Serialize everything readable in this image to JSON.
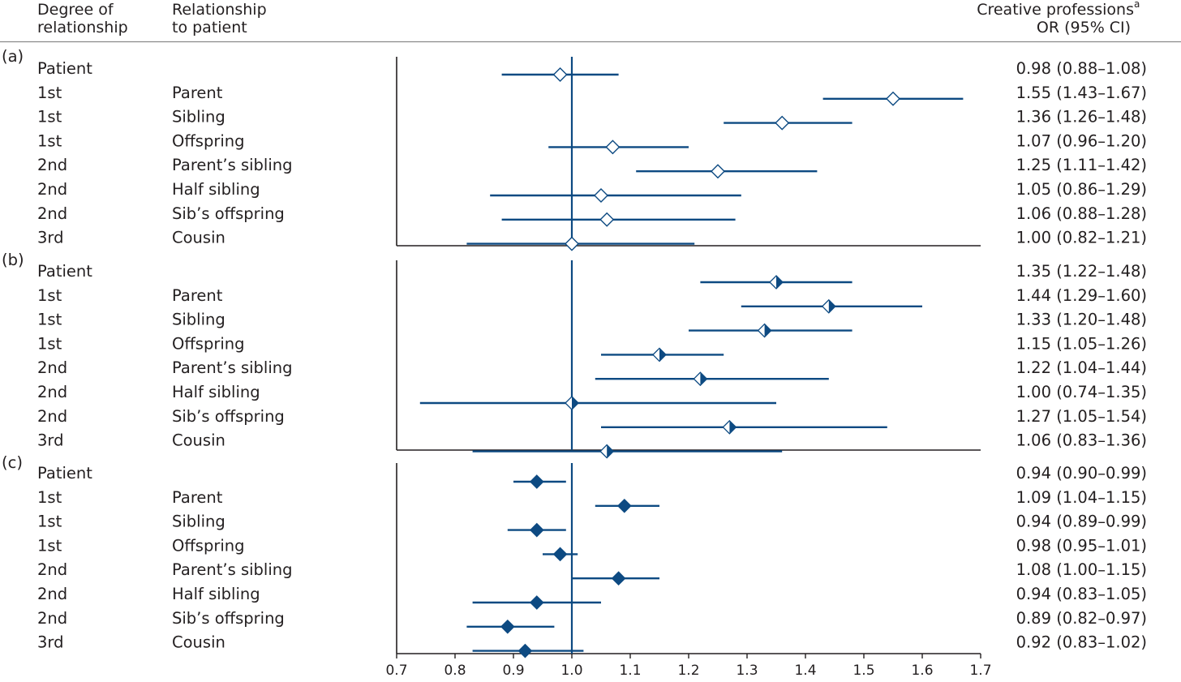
{
  "header": {
    "col_degree": [
      "Degree of",
      "relationship"
    ],
    "col_relationship": [
      "Relationship",
      "to patient"
    ],
    "col_or_title": "Creative professions",
    "col_or_sup": "a",
    "col_or_sub": "OR (95% CI)"
  },
  "chart_data": {
    "type": "forest",
    "title": "",
    "xlabel": "",
    "xlim": [
      0.7,
      1.7
    ],
    "x_ticks": [
      "0.7",
      "0.8",
      "0.9",
      "1.0",
      "1.1",
      "1.2",
      "1.3",
      "1.4",
      "1.5",
      "1.6",
      "1.7"
    ],
    "reference_line": 1.0,
    "colors": {
      "line": "#0d4a82",
      "axis": "#231f20",
      "divider": "#8a8a8a"
    },
    "panels": [
      {
        "label": "(a)",
        "marker": "open-diamond",
        "rows": [
          {
            "degree": "Patient",
            "relationship": "",
            "or": 0.98,
            "lo": 0.88,
            "hi": 1.08,
            "text": "0.98 (0.88–1.08)"
          },
          {
            "degree": "1st",
            "relationship": "Parent",
            "or": 1.55,
            "lo": 1.43,
            "hi": 1.67,
            "text": "1.55 (1.43–1.67)"
          },
          {
            "degree": "1st",
            "relationship": "Sibling",
            "or": 1.36,
            "lo": 1.26,
            "hi": 1.48,
            "text": "1.36 (1.26–1.48)"
          },
          {
            "degree": "1st",
            "relationship": "Offspring",
            "or": 1.07,
            "lo": 0.96,
            "hi": 1.2,
            "text": "1.07 (0.96–1.20)"
          },
          {
            "degree": "2nd",
            "relationship": "Parent’s sibling",
            "or": 1.25,
            "lo": 1.11,
            "hi": 1.42,
            "text": "1.25 (1.11–1.42)"
          },
          {
            "degree": "2nd",
            "relationship": "Half sibling",
            "or": 1.05,
            "lo": 0.86,
            "hi": 1.29,
            "text": "1.05 (0.86–1.29)"
          },
          {
            "degree": "2nd",
            "relationship": "Sib’s offspring",
            "or": 1.06,
            "lo": 0.88,
            "hi": 1.28,
            "text": "1.06 (0.88–1.28)"
          },
          {
            "degree": "3rd",
            "relationship": "Cousin",
            "or": 1.0,
            "lo": 0.82,
            "hi": 1.21,
            "text": "1.00 (0.82–1.21)"
          }
        ]
      },
      {
        "label": "(b)",
        "marker": "half-filled-diamond",
        "rows": [
          {
            "degree": "Patient",
            "relationship": "",
            "or": 1.35,
            "lo": 1.22,
            "hi": 1.48,
            "text": "1.35 (1.22–1.48)"
          },
          {
            "degree": "1st",
            "relationship": "Parent",
            "or": 1.44,
            "lo": 1.29,
            "hi": 1.6,
            "text": "1.44 (1.29–1.60)"
          },
          {
            "degree": "1st",
            "relationship": "Sibling",
            "or": 1.33,
            "lo": 1.2,
            "hi": 1.48,
            "text": "1.33 (1.20–1.48)"
          },
          {
            "degree": "1st",
            "relationship": "Offspring",
            "or": 1.15,
            "lo": 1.05,
            "hi": 1.26,
            "text": "1.15 (1.05–1.26)"
          },
          {
            "degree": "2nd",
            "relationship": "Parent’s sibling",
            "or": 1.22,
            "lo": 1.04,
            "hi": 1.44,
            "text": "1.22 (1.04–1.44)"
          },
          {
            "degree": "2nd",
            "relationship": "Half sibling",
            "or": 1.0,
            "lo": 0.74,
            "hi": 1.35,
            "text": "1.00 (0.74–1.35)"
          },
          {
            "degree": "2nd",
            "relationship": "Sib’s offspring",
            "or": 1.27,
            "lo": 1.05,
            "hi": 1.54,
            "text": "1.27 (1.05–1.54)"
          },
          {
            "degree": "3rd",
            "relationship": "Cousin",
            "or": 1.06,
            "lo": 0.83,
            "hi": 1.36,
            "text": "1.06 (0.83–1.36)"
          }
        ]
      },
      {
        "label": "(c)",
        "marker": "filled-diamond",
        "rows": [
          {
            "degree": "Patient",
            "relationship": "",
            "or": 0.94,
            "lo": 0.9,
            "hi": 0.99,
            "text": "0.94 (0.90–0.99)"
          },
          {
            "degree": "1st",
            "relationship": "Parent",
            "or": 1.09,
            "lo": 1.04,
            "hi": 1.15,
            "text": "1.09 (1.04–1.15)"
          },
          {
            "degree": "1st",
            "relationship": "Sibling",
            "or": 0.94,
            "lo": 0.89,
            "hi": 0.99,
            "text": "0.94 (0.89–0.99)"
          },
          {
            "degree": "1st",
            "relationship": "Offspring",
            "or": 0.98,
            "lo": 0.95,
            "hi": 1.01,
            "text": "0.98 (0.95–1.01)"
          },
          {
            "degree": "2nd",
            "relationship": "Parent’s sibling",
            "or": 1.08,
            "lo": 1.0,
            "hi": 1.15,
            "text": "1.08 (1.00–1.15)"
          },
          {
            "degree": "2nd",
            "relationship": "Half sibling",
            "or": 0.94,
            "lo": 0.83,
            "hi": 1.05,
            "text": "0.94 (0.83–1.05)"
          },
          {
            "degree": "2nd",
            "relationship": "Sib’s offspring",
            "or": 0.89,
            "lo": 0.82,
            "hi": 0.97,
            "text": "0.89 (0.82–0.97)"
          },
          {
            "degree": "3rd",
            "relationship": "Cousin",
            "or": 0.92,
            "lo": 0.83,
            "hi": 1.02,
            "text": "0.92 (0.83–1.02)"
          }
        ]
      }
    ]
  }
}
